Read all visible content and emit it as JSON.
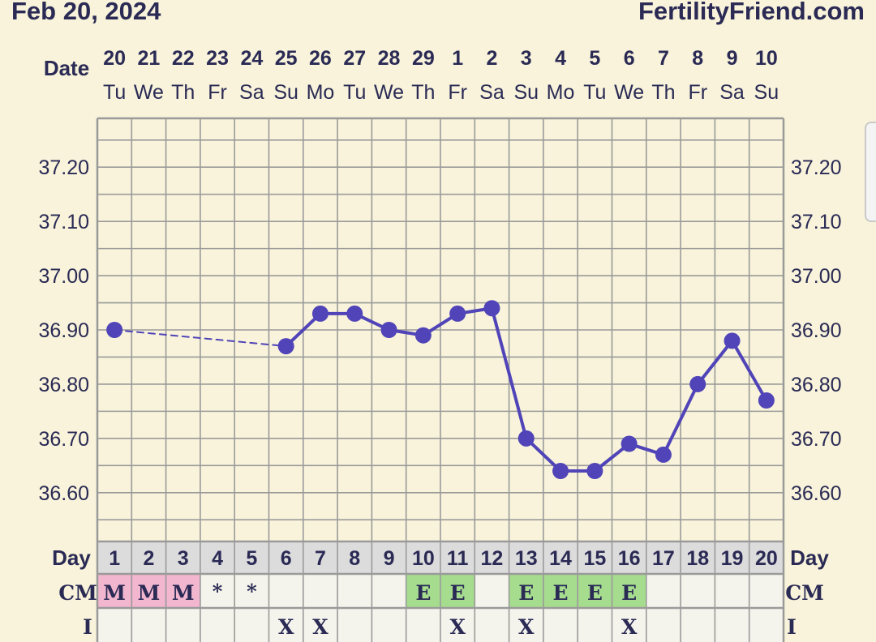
{
  "header": {
    "date": "Feb 20, 2024",
    "site": "FertilityFriend.com"
  },
  "labels": {
    "date": "Date",
    "day": "Day",
    "cm": "CM",
    "intercourse": "I"
  },
  "colors": {
    "line": "#5044b8",
    "menstruation": "#f2b6cf",
    "egg_white": "#a6dc8e",
    "grid": "#9a9a9a",
    "background": "#f8f3da"
  },
  "chart_data": {
    "type": "line",
    "y_tick_labels": [
      "37.20",
      "37.10",
      "37.00",
      "36.90",
      "36.80",
      "36.70",
      "36.60"
    ],
    "ylim": [
      36.51,
      37.29
    ],
    "grid": true,
    "columns": [
      {
        "date": "20",
        "weekday": "Tu",
        "cycle_day": "1",
        "cm": "M",
        "intercourse": "",
        "temp": 36.9
      },
      {
        "date": "21",
        "weekday": "We",
        "cycle_day": "2",
        "cm": "M",
        "intercourse": "",
        "temp": null
      },
      {
        "date": "22",
        "weekday": "Th",
        "cycle_day": "3",
        "cm": "M",
        "intercourse": "",
        "temp": null
      },
      {
        "date": "23",
        "weekday": "Fr",
        "cycle_day": "4",
        "cm": "*",
        "intercourse": "",
        "temp": null
      },
      {
        "date": "24",
        "weekday": "Sa",
        "cycle_day": "5",
        "cm": "*",
        "intercourse": "",
        "temp": null
      },
      {
        "date": "25",
        "weekday": "Su",
        "cycle_day": "6",
        "cm": "",
        "intercourse": "X",
        "temp": 36.87
      },
      {
        "date": "26",
        "weekday": "Mo",
        "cycle_day": "7",
        "cm": "",
        "intercourse": "X",
        "temp": 36.93
      },
      {
        "date": "27",
        "weekday": "Tu",
        "cycle_day": "8",
        "cm": "",
        "intercourse": "",
        "temp": 36.93
      },
      {
        "date": "28",
        "weekday": "We",
        "cycle_day": "9",
        "cm": "",
        "intercourse": "",
        "temp": 36.9
      },
      {
        "date": "29",
        "weekday": "Th",
        "cycle_day": "10",
        "cm": "E",
        "intercourse": "",
        "temp": 36.89
      },
      {
        "date": "1",
        "weekday": "Fr",
        "cycle_day": "11",
        "cm": "E",
        "intercourse": "X",
        "temp": 36.93
      },
      {
        "date": "2",
        "weekday": "Sa",
        "cycle_day": "12",
        "cm": "",
        "intercourse": "",
        "temp": 36.94
      },
      {
        "date": "3",
        "weekday": "Su",
        "cycle_day": "13",
        "cm": "E",
        "intercourse": "X",
        "temp": 36.7
      },
      {
        "date": "4",
        "weekday": "Mo",
        "cycle_day": "14",
        "cm": "E",
        "intercourse": "",
        "temp": 36.64
      },
      {
        "date": "5",
        "weekday": "Tu",
        "cycle_day": "15",
        "cm": "E",
        "intercourse": "",
        "temp": 36.64
      },
      {
        "date": "6",
        "weekday": "We",
        "cycle_day": "16",
        "cm": "E",
        "intercourse": "X",
        "temp": 36.69
      },
      {
        "date": "7",
        "weekday": "Th",
        "cycle_day": "17",
        "cm": "",
        "intercourse": "",
        "temp": 36.67
      },
      {
        "date": "8",
        "weekday": "Fr",
        "cycle_day": "18",
        "cm": "",
        "intercourse": "",
        "temp": 36.8
      },
      {
        "date": "9",
        "weekday": "Sa",
        "cycle_day": "19",
        "cm": "",
        "intercourse": "",
        "temp": 36.88
      },
      {
        "date": "10",
        "weekday": "Su",
        "cycle_day": "20",
        "cm": "",
        "intercourse": "",
        "temp": 36.77
      }
    ]
  }
}
